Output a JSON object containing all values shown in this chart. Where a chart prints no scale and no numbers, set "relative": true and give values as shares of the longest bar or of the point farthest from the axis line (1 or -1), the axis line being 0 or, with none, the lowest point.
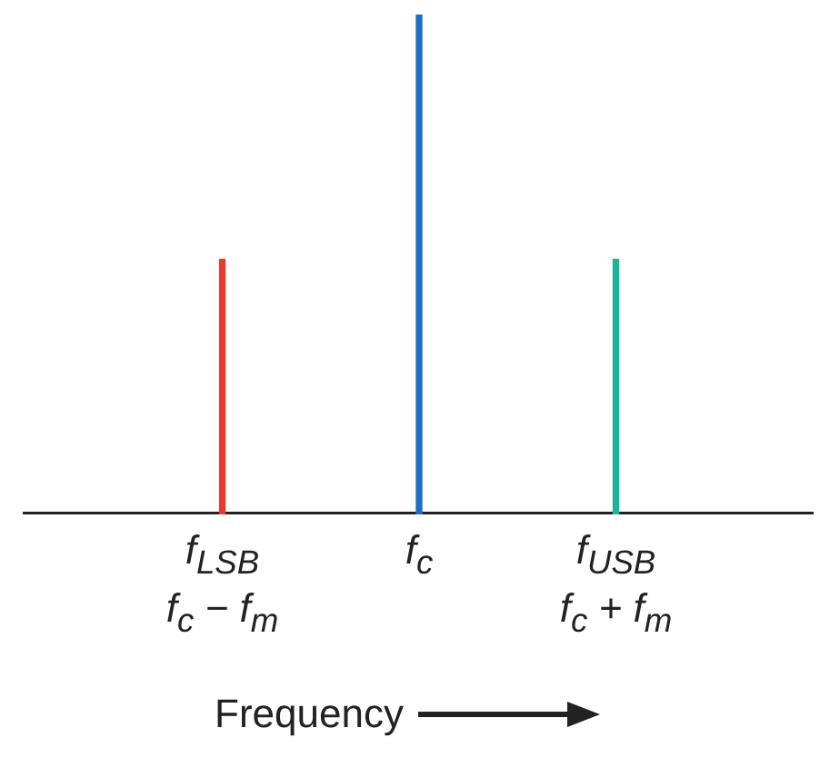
{
  "chart_data": {
    "type": "bar",
    "relative": true,
    "xlabel": "Frequency",
    "categories": [
      null,
      "f$_{LSB}$\nf$_{c}$ − f$_{m}$",
      "f$_{c}$",
      "f$_{USB}$\nf$_{c}$ + f$_{m}$",
      null
    ],
    "values": [
      null,
      0.51,
      1,
      0.51,
      null
    ],
    "colors": [
      null,
      "#e8392f",
      "#1f6dc4",
      "#1db394",
      null
    ],
    "legend": false,
    "grid": false
  }
}
